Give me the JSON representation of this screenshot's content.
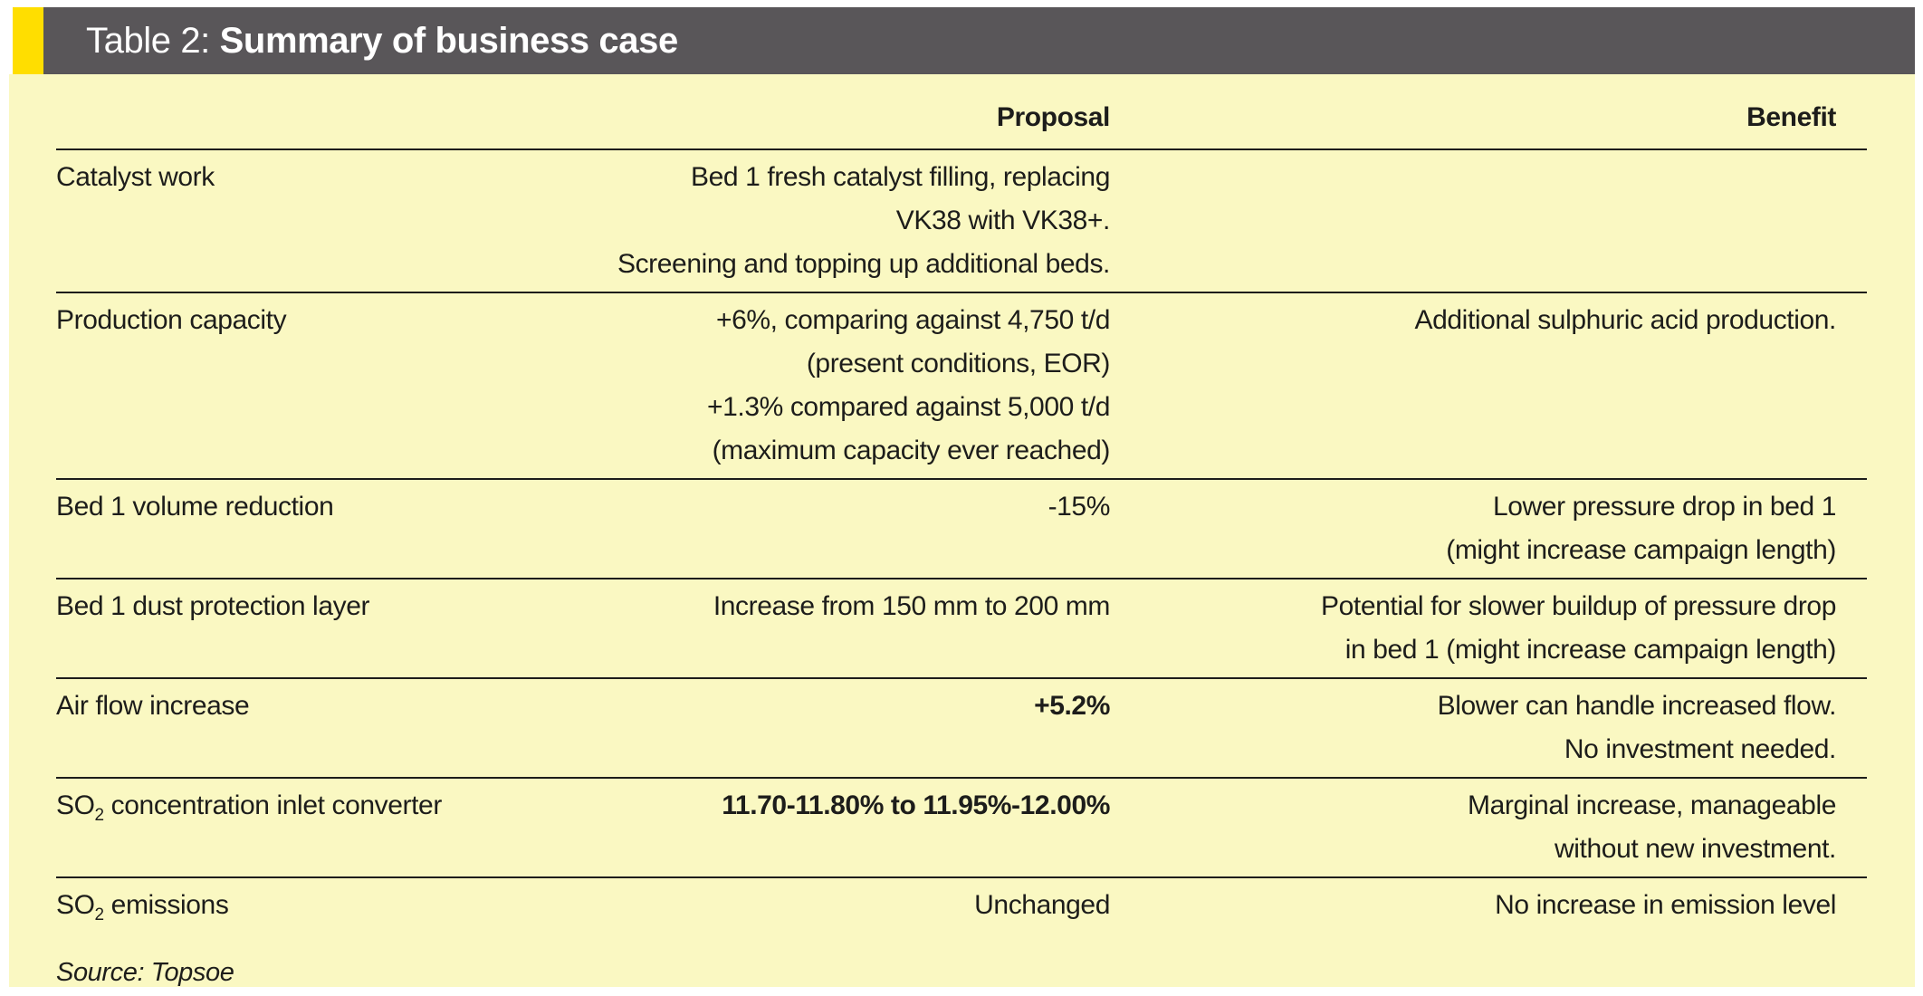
{
  "title": {
    "prefix": "Table 2: ",
    "bold": "Summary of business case"
  },
  "columns": {
    "proposal": "Proposal",
    "benefit": "Benefit"
  },
  "rows": [
    {
      "label": {
        "pre": "Catalyst work",
        "sub": "",
        "post": ""
      },
      "proposal": {
        "bold": false,
        "lines": [
          "Bed 1 fresh catalyst filling, replacing",
          "VK38 with VK38+.",
          "Screening and topping up additional beds."
        ]
      },
      "benefit": {
        "lines": []
      }
    },
    {
      "label": {
        "pre": "Production capacity",
        "sub": "",
        "post": ""
      },
      "proposal": {
        "bold": false,
        "lines": [
          "+6%, comparing against 4,750 t/d",
          "(present conditions, EOR)",
          "+1.3% compared against 5,000 t/d",
          "(maximum capacity ever reached)"
        ]
      },
      "benefit": {
        "lines": [
          "Additional sulphuric acid production."
        ]
      }
    },
    {
      "label": {
        "pre": "Bed 1 volume reduction",
        "sub": "",
        "post": ""
      },
      "proposal": {
        "bold": false,
        "lines": [
          "-15%"
        ]
      },
      "benefit": {
        "lines": [
          "Lower pressure drop in bed 1",
          "(might increase campaign length)"
        ]
      }
    },
    {
      "label": {
        "pre": "Bed 1 dust protection layer",
        "sub": "",
        "post": ""
      },
      "proposal": {
        "bold": false,
        "lines": [
          "Increase from 150 mm to 200 mm"
        ]
      },
      "benefit": {
        "lines": [
          "Potential for slower buildup of pressure drop",
          "in bed 1 (might increase campaign length)"
        ]
      }
    },
    {
      "label": {
        "pre": "Air flow increase",
        "sub": "",
        "post": ""
      },
      "proposal": {
        "bold": true,
        "lines": [
          "+5.2%"
        ]
      },
      "benefit": {
        "lines": [
          "Blower can handle increased flow.",
          "No investment needed."
        ]
      }
    },
    {
      "label": {
        "pre": "SO",
        "sub": "2",
        "post": " concentration inlet converter"
      },
      "proposal": {
        "bold": true,
        "lines": [
          "11.70-11.80% to 11.95%-12.00%"
        ]
      },
      "benefit": {
        "lines": [
          "Marginal increase, manageable",
          "without new investment."
        ]
      }
    },
    {
      "label": {
        "pre": "SO",
        "sub": "2",
        "post": " emissions"
      },
      "proposal": {
        "bold": false,
        "lines": [
          "Unchanged"
        ]
      },
      "benefit": {
        "lines": [
          "No increase in emission level"
        ]
      }
    }
  ],
  "source": "Source: Topsoe",
  "colors": {
    "accent_yellow": "#FFDE00",
    "header_gray": "#595659",
    "panel_yellow": "#FAF8C2",
    "text": "#1D1D1B",
    "title_text": "#FFFFFF"
  }
}
